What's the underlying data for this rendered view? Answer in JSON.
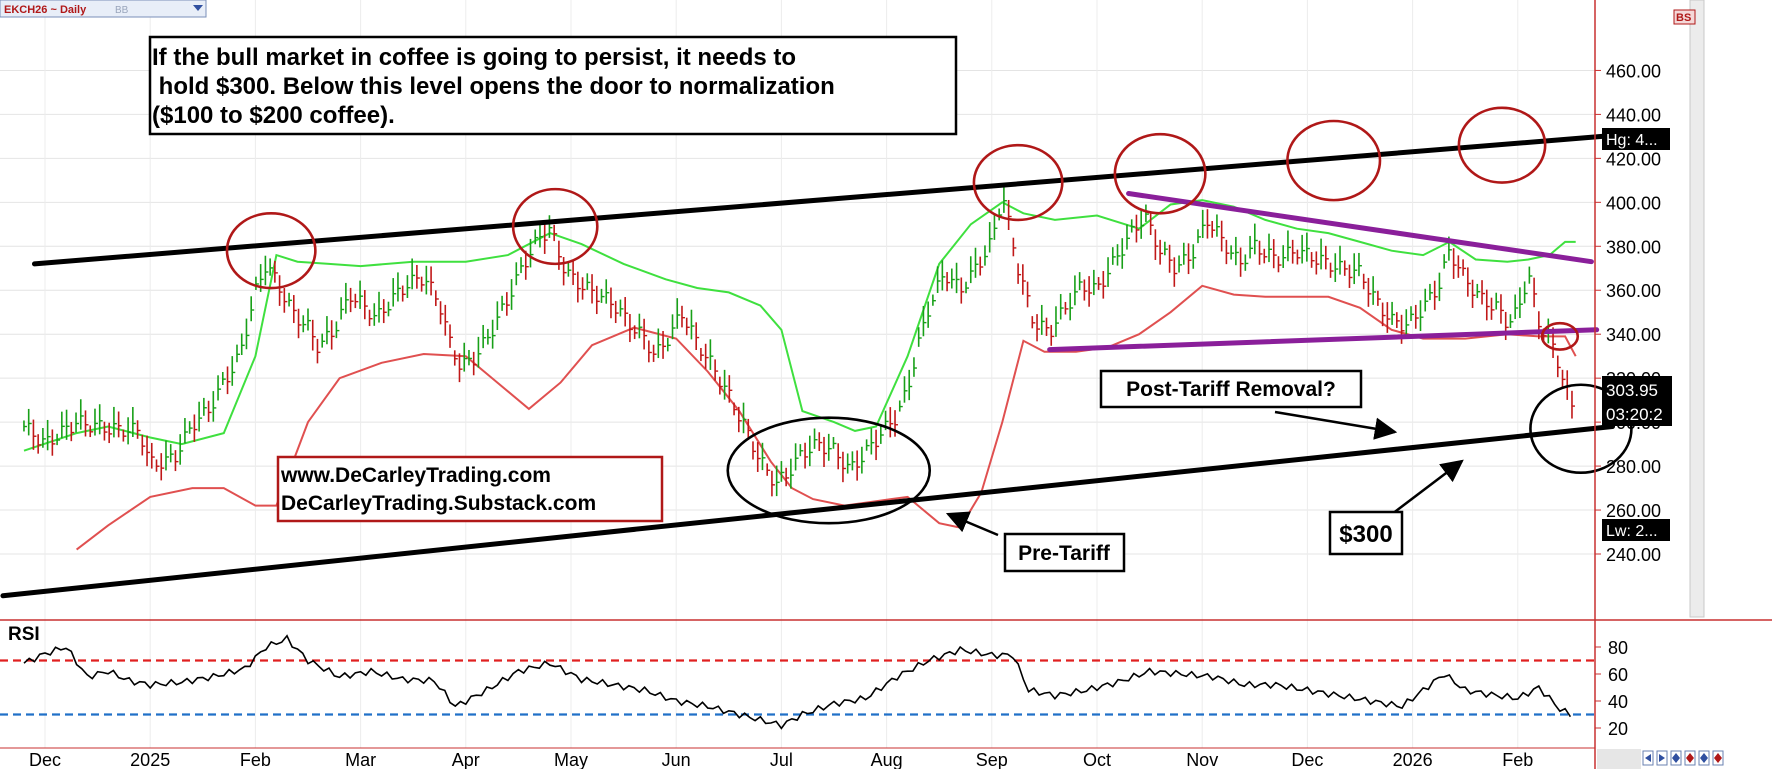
{
  "chart_data": {
    "type": "ohlc",
    "symbol_tab": "EKCH26 ~ Daily",
    "symbol_tab_extra": "BB",
    "corner_badge": "BS",
    "y_axis": {
      "ticks": [
        240,
        260,
        280,
        300,
        320,
        340,
        360,
        380,
        400,
        420,
        440,
        460
      ],
      "tick_labels": [
        "240.00",
        "260.00",
        "280.00",
        "300.00",
        "320.00",
        "340.00",
        "360.00",
        "380.00",
        "400.00",
        "420.00",
        "440.00",
        "460.00"
      ],
      "range": [
        232,
        472
      ]
    },
    "x_axis": {
      "months": [
        "Dec",
        "2025",
        "Feb",
        "Mar",
        "Apr",
        "May",
        "Jun",
        "Jul",
        "Aug",
        "Sep",
        "Oct",
        "Nov",
        "Dec",
        "2026",
        "Feb"
      ],
      "month_index": [
        0,
        1,
        2,
        3,
        4,
        5,
        6,
        7,
        8,
        9,
        10,
        11,
        12,
        13,
        14
      ]
    },
    "price_flags": {
      "high": "Hg: 4...",
      "last": "303.95",
      "timer": "03:20:2",
      "low": "Lw: 2..."
    },
    "last_price": 303.95,
    "grid": true,
    "price_series": [
      [
        -0.2,
        298
      ],
      [
        0.0,
        290
      ],
      [
        0.3,
        300
      ],
      [
        0.6,
        297
      ],
      [
        0.9,
        296
      ],
      [
        1.0,
        281
      ],
      [
        1.15,
        282
      ],
      [
        1.25,
        285
      ],
      [
        1.4,
        299
      ],
      [
        1.55,
        305
      ],
      [
        1.7,
        318
      ],
      [
        1.85,
        330
      ],
      [
        2.0,
        359
      ],
      [
        2.1,
        372
      ],
      [
        2.2,
        364
      ],
      [
        2.35,
        350
      ],
      [
        2.5,
        343
      ],
      [
        2.6,
        334
      ],
      [
        2.75,
        342
      ],
      [
        2.9,
        358
      ],
      [
        3.05,
        352
      ],
      [
        3.15,
        347
      ],
      [
        3.3,
        356
      ],
      [
        3.45,
        363
      ],
      [
        3.6,
        366
      ],
      [
        3.75,
        354
      ],
      [
        3.85,
        336
      ],
      [
        3.95,
        325
      ],
      [
        4.1,
        330
      ],
      [
        4.25,
        342
      ],
      [
        4.4,
        356
      ],
      [
        4.55,
        372
      ],
      [
        4.7,
        384
      ],
      [
        4.8,
        388
      ],
      [
        4.95,
        368
      ],
      [
        5.1,
        362
      ],
      [
        5.25,
        358
      ],
      [
        5.4,
        354
      ],
      [
        5.55,
        345
      ],
      [
        5.7,
        338
      ],
      [
        5.8,
        330
      ],
      [
        5.95,
        340
      ],
      [
        6.05,
        350
      ],
      [
        6.2,
        336
      ],
      [
        6.35,
        325
      ],
      [
        6.5,
        312
      ],
      [
        6.65,
        298
      ],
      [
        6.8,
        282
      ],
      [
        6.95,
        272
      ],
      [
        7.05,
        276
      ],
      [
        7.2,
        286
      ],
      [
        7.35,
        290
      ],
      [
        7.5,
        287
      ],
      [
        7.65,
        278
      ],
      [
        7.8,
        286
      ],
      [
        7.95,
        295
      ],
      [
        8.1,
        303
      ],
      [
        8.2,
        315
      ],
      [
        8.3,
        335
      ],
      [
        8.4,
        352
      ],
      [
        8.55,
        368
      ],
      [
        8.7,
        360
      ],
      [
        8.85,
        370
      ],
      [
        9.0,
        382
      ],
      [
        9.1,
        404
      ],
      [
        9.25,
        370
      ],
      [
        9.4,
        345
      ],
      [
        9.55,
        341
      ],
      [
        9.7,
        352
      ],
      [
        9.85,
        362
      ],
      [
        10.0,
        360
      ],
      [
        10.15,
        372
      ],
      [
        10.3,
        384
      ],
      [
        10.45,
        394
      ],
      [
        10.6,
        378
      ],
      [
        10.75,
        370
      ],
      [
        10.9,
        376
      ],
      [
        11.05,
        392
      ],
      [
        11.2,
        382
      ],
      [
        11.35,
        372
      ],
      [
        11.5,
        380
      ],
      [
        11.7,
        374
      ],
      [
        11.9,
        378
      ],
      [
        12.1,
        374
      ],
      [
        12.3,
        370
      ],
      [
        12.5,
        368
      ],
      [
        12.65,
        355
      ],
      [
        12.8,
        346
      ],
      [
        12.95,
        344
      ],
      [
        13.1,
        352
      ],
      [
        13.25,
        362
      ],
      [
        13.35,
        378
      ],
      [
        13.5,
        365
      ],
      [
        13.65,
        356
      ],
      [
        13.8,
        352
      ],
      [
        13.9,
        345
      ],
      [
        14.0,
        350
      ],
      [
        14.1,
        368
      ],
      [
        14.2,
        345
      ],
      [
        14.3,
        338
      ],
      [
        14.4,
        325
      ],
      [
        14.5,
        308
      ],
      [
        14.55,
        303.95
      ]
    ],
    "bollinger_upper": [
      [
        -0.2,
        287
      ],
      [
        0.3,
        295
      ],
      [
        0.6,
        298
      ],
      [
        1.0,
        293
      ],
      [
        1.3,
        290
      ],
      [
        1.7,
        295
      ],
      [
        2.0,
        330
      ],
      [
        2.2,
        376
      ],
      [
        2.4,
        373
      ],
      [
        2.7,
        372
      ],
      [
        3.0,
        371
      ],
      [
        3.5,
        373
      ],
      [
        4.0,
        373
      ],
      [
        4.4,
        376
      ],
      [
        4.8,
        386
      ],
      [
        5.1,
        381
      ],
      [
        5.5,
        372
      ],
      [
        5.9,
        365
      ],
      [
        6.2,
        361
      ],
      [
        6.5,
        359
      ],
      [
        6.8,
        353
      ],
      [
        7.0,
        342
      ],
      [
        7.2,
        305
      ],
      [
        7.5,
        300
      ],
      [
        7.7,
        296
      ],
      [
        7.9,
        298
      ],
      [
        8.2,
        330
      ],
      [
        8.5,
        372
      ],
      [
        8.8,
        390
      ],
      [
        9.1,
        400
      ],
      [
        9.3,
        395
      ],
      [
        9.6,
        392
      ],
      [
        10.0,
        394
      ],
      [
        10.4,
        388
      ],
      [
        10.7,
        399
      ],
      [
        11.0,
        401
      ],
      [
        11.3,
        398
      ],
      [
        11.6,
        392
      ],
      [
        11.9,
        388
      ],
      [
        12.2,
        386
      ],
      [
        12.5,
        382
      ],
      [
        12.8,
        378
      ],
      [
        13.1,
        376
      ],
      [
        13.35,
        382
      ],
      [
        13.6,
        374
      ],
      [
        13.9,
        373
      ],
      [
        14.1,
        374
      ],
      [
        14.3,
        376
      ],
      [
        14.45,
        382
      ],
      [
        14.55,
        382
      ]
    ],
    "bollinger_lower": [
      [
        0.3,
        242
      ],
      [
        0.6,
        253
      ],
      [
        1.0,
        266
      ],
      [
        1.4,
        270
      ],
      [
        1.7,
        270
      ],
      [
        2.0,
        262
      ],
      [
        2.2,
        262
      ],
      [
        2.5,
        300
      ],
      [
        2.8,
        320
      ],
      [
        3.2,
        327
      ],
      [
        3.6,
        331
      ],
      [
        4.0,
        330
      ],
      [
        4.3,
        318
      ],
      [
        4.6,
        306
      ],
      [
        4.9,
        318
      ],
      [
        5.2,
        335
      ],
      [
        5.6,
        343
      ],
      [
        6.0,
        338
      ],
      [
        6.3,
        323
      ],
      [
        6.6,
        305
      ],
      [
        6.9,
        282
      ],
      [
        7.1,
        270
      ],
      [
        7.3,
        265
      ],
      [
        7.6,
        262
      ],
      [
        7.9,
        264
      ],
      [
        8.2,
        266
      ],
      [
        8.5,
        254
      ],
      [
        8.7,
        252
      ],
      [
        8.9,
        268
      ],
      [
        9.1,
        300
      ],
      [
        9.3,
        337
      ],
      [
        9.5,
        332
      ],
      [
        9.8,
        332
      ],
      [
        10.1,
        334
      ],
      [
        10.4,
        340
      ],
      [
        10.7,
        350
      ],
      [
        11.0,
        362
      ],
      [
        11.3,
        358
      ],
      [
        11.6,
        357
      ],
      [
        11.9,
        357
      ],
      [
        12.2,
        357
      ],
      [
        12.5,
        352
      ],
      [
        12.8,
        342
      ],
      [
        13.1,
        338
      ],
      [
        13.5,
        338
      ],
      [
        13.9,
        340
      ],
      [
        14.2,
        339
      ],
      [
        14.45,
        339
      ],
      [
        14.55,
        330
      ]
    ],
    "rsi": {
      "label": "RSI",
      "ticks": [
        20,
        40,
        60,
        80
      ],
      "tick_labels": [
        "20",
        "40",
        "60",
        "80"
      ],
      "overbought": 70,
      "oversold": 30,
      "values": [
        [
          -0.2,
          68
        ],
        [
          0.0,
          75
        ],
        [
          0.2,
          80
        ],
        [
          0.4,
          58
        ],
        [
          0.6,
          62
        ],
        [
          0.8,
          55
        ],
        [
          1.0,
          52
        ],
        [
          1.3,
          54
        ],
        [
          1.6,
          58
        ],
        [
          1.9,
          64
        ],
        [
          2.1,
          80
        ],
        [
          2.3,
          86
        ],
        [
          2.5,
          70
        ],
        [
          2.8,
          58
        ],
        [
          3.1,
          62
        ],
        [
          3.4,
          56
        ],
        [
          3.7,
          55
        ],
        [
          3.9,
          36
        ],
        [
          4.2,
          48
        ],
        [
          4.5,
          62
        ],
        [
          4.8,
          68
        ],
        [
          5.1,
          56
        ],
        [
          5.4,
          52
        ],
        [
          5.7,
          48
        ],
        [
          6.0,
          40
        ],
        [
          6.3,
          36
        ],
        [
          6.6,
          30
        ],
        [
          6.8,
          26
        ],
        [
          7.0,
          22
        ],
        [
          7.2,
          30
        ],
        [
          7.5,
          38
        ],
        [
          7.8,
          42
        ],
        [
          8.1,
          58
        ],
        [
          8.4,
          70
        ],
        [
          8.7,
          78
        ],
        [
          9.0,
          74
        ],
        [
          9.2,
          74
        ],
        [
          9.35,
          48
        ],
        [
          9.6,
          44
        ],
        [
          9.9,
          48
        ],
        [
          10.2,
          54
        ],
        [
          10.5,
          62
        ],
        [
          10.8,
          60
        ],
        [
          11.1,
          58
        ],
        [
          11.4,
          52
        ],
        [
          11.7,
          52
        ],
        [
          12.0,
          48
        ],
        [
          12.3,
          44
        ],
        [
          12.6,
          40
        ],
        [
          12.9,
          36
        ],
        [
          13.1,
          48
        ],
        [
          13.3,
          60
        ],
        [
          13.5,
          48
        ],
        [
          13.8,
          44
        ],
        [
          14.0,
          42
        ],
        [
          14.2,
          50
        ],
        [
          14.4,
          34
        ],
        [
          14.55,
          28
        ]
      ]
    },
    "trendlines": [
      {
        "name": "upper-channel",
        "color": "#000000",
        "from": [
          -0.1,
          372
        ],
        "to": [
          14.8,
          430
        ]
      },
      {
        "name": "lower-channel",
        "color": "#000000",
        "from": [
          -0.4,
          221
        ],
        "to": [
          14.9,
          298
        ]
      },
      {
        "name": "triangle-top",
        "color": "#8a1f9a",
        "from": [
          10.3,
          404
        ],
        "to": [
          14.7,
          373
        ]
      },
      {
        "name": "triangle-bottom",
        "color": "#8a1f9a",
        "from": [
          9.55,
          333
        ],
        "to": [
          14.75,
          342
        ]
      }
    ],
    "highlight_circles": [
      {
        "color": "#b01818",
        "center": [
          2.15,
          378
        ],
        "r_x": 0.42,
        "r_y": 17
      },
      {
        "color": "#b01818",
        "center": [
          4.85,
          389
        ],
        "r_x": 0.4,
        "r_y": 17
      },
      {
        "color": "#b01818",
        "center": [
          9.25,
          409
        ],
        "r_x": 0.42,
        "r_y": 17
      },
      {
        "color": "#b01818",
        "center": [
          10.6,
          413
        ],
        "r_x": 0.43,
        "r_y": 18
      },
      {
        "color": "#b01818",
        "center": [
          12.25,
          419
        ],
        "r_x": 0.44,
        "r_y": 18
      },
      {
        "color": "#b01818",
        "center": [
          13.85,
          426
        ],
        "r_x": 0.41,
        "r_y": 17
      },
      {
        "color": "#b01818",
        "center": [
          14.4,
          339
        ],
        "r_x": 0.17,
        "r_y": 6
      },
      {
        "color": "#000000",
        "center": [
          7.45,
          278
        ],
        "r_x": 0.96,
        "r_y": 24
      },
      {
        "color": "#000000",
        "center": [
          14.6,
          297
        ],
        "r_x": 0.48,
        "r_y": 20
      }
    ],
    "annotations": {
      "headline": "If the bull market in coffee is going to persist, it needs to hold $300. Below this level opens the door to normalization ($100 to $200 coffee).",
      "headline_lines": [
        "If the bull market in coffee is going to persist, it needs to",
        " hold $300. Below this level opens the door to normalization",
        "($100 to $200 coffee)."
      ],
      "website_lines": [
        "www.DeCarleyTrading.com",
        "DeCarleyTrading.Substack.com"
      ],
      "callout_post_tariff": "Post-Tariff Removal?",
      "callout_pre_tariff": "Pre-Tariff",
      "callout_300": "$300"
    },
    "colors": {
      "up_bar": "#18a018",
      "down_bar": "#c01818",
      "bollinger_upper": "#3fe03f",
      "bollinger_lower": "#e05050",
      "rsi_line": "#000000",
      "rsi_overbought": "#e02020",
      "rsi_oversold": "#2070c8",
      "circle_red": "#b01818",
      "trend_purple": "#8a1f9a",
      "website_border": "#b01818"
    }
  }
}
